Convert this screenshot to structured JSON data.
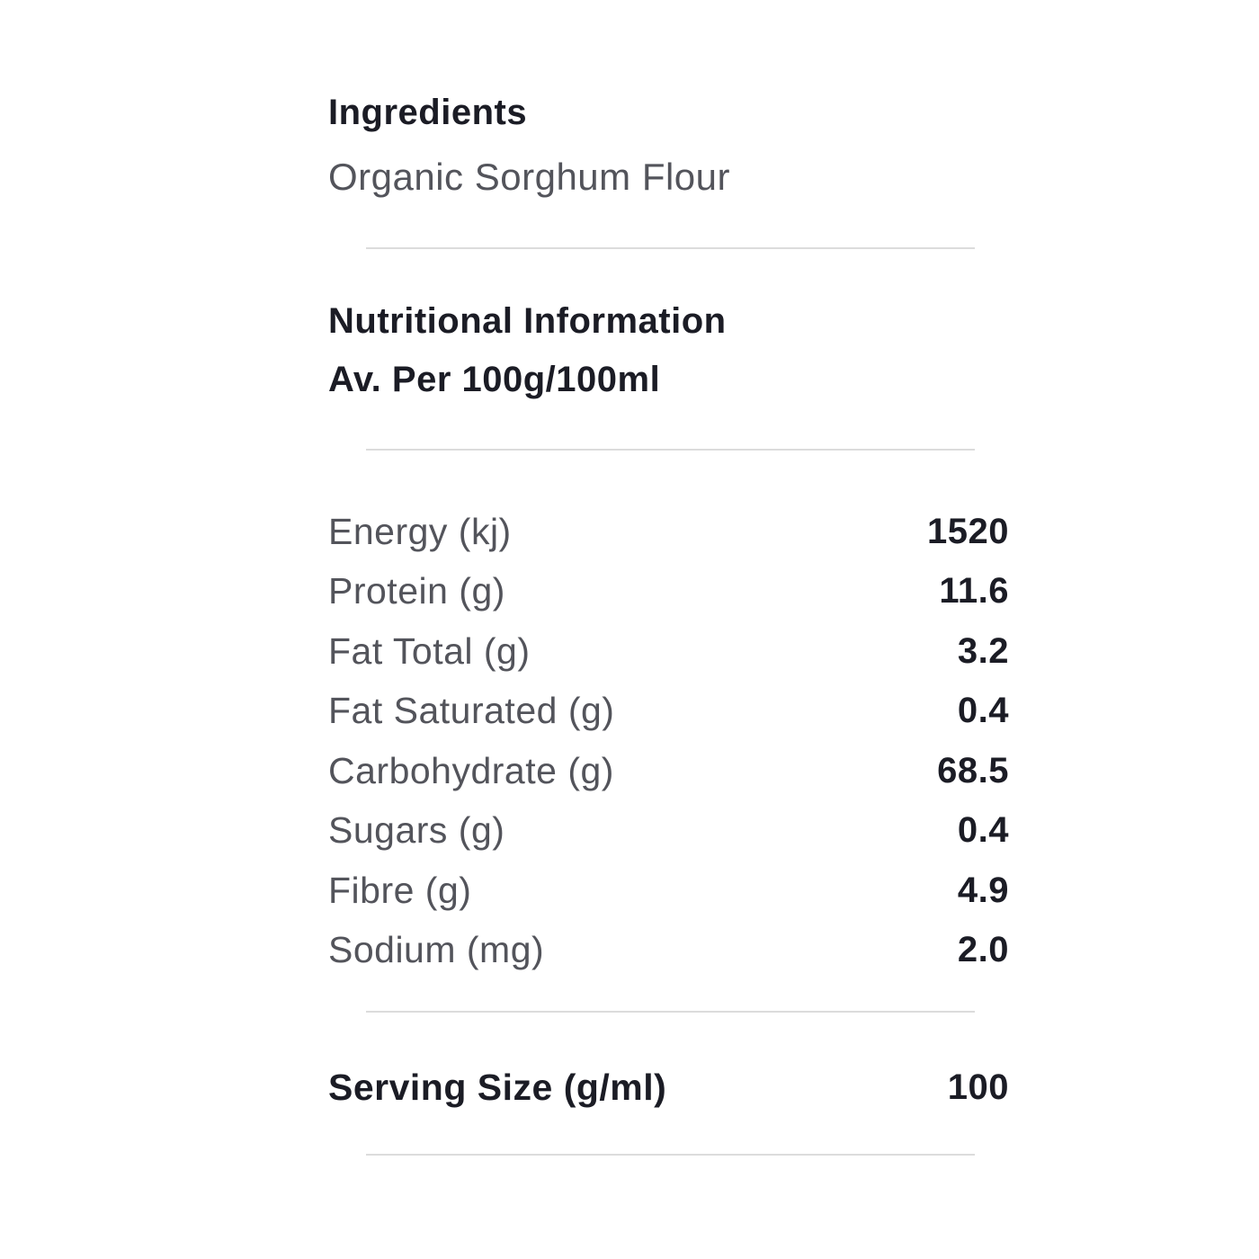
{
  "colors": {
    "background": "#ffffff",
    "heading_text": "#1b1c25",
    "label_text": "#53545b",
    "value_text": "#1b1c25",
    "divider": "#dcdcdc"
  },
  "ingredients": {
    "title": "Ingredients",
    "text": "Organic Sorghum Flour"
  },
  "nutrition": {
    "title": "Nutritional Information",
    "subtitle": "Av. Per 100g/100ml",
    "rows": [
      {
        "label": "Energy (kj)",
        "value": "1520"
      },
      {
        "label": "Protein (g)",
        "value": "11.6"
      },
      {
        "label": "Fat Total (g)",
        "value": "3.2"
      },
      {
        "label": "Fat Saturated (g)",
        "value": "0.4"
      },
      {
        "label": "Carbohydrate (g)",
        "value": "68.5"
      },
      {
        "label": "Sugars (g)",
        "value": "0.4"
      },
      {
        "label": "Fibre (g)",
        "value": "4.9"
      },
      {
        "label": "Sodium (mg)",
        "value": "2.0"
      }
    ]
  },
  "serving": {
    "label": "Serving Size (g/ml)",
    "value": "100"
  }
}
